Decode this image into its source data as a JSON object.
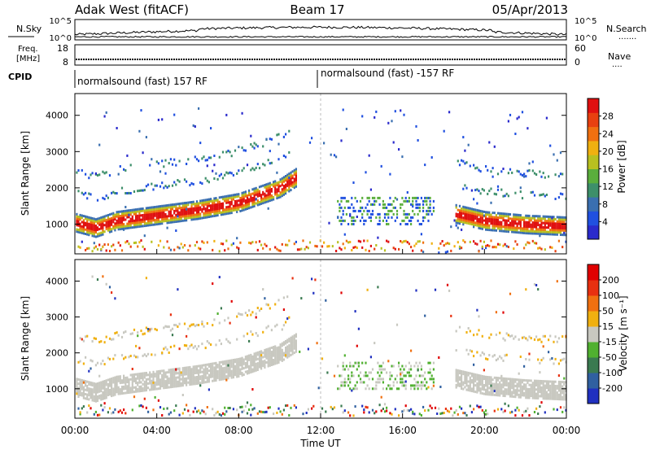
{
  "header": {
    "station": "Adak West (fitACF)",
    "beam": "Beam 17",
    "date": "05/Apr/2013"
  },
  "top_strip": {
    "left_label": "N.Sky",
    "right_label": "N.Search",
    "right_dots": ".......",
    "left_ticks": [
      "10^5",
      "10^0"
    ],
    "right_ticks": [
      "10^5",
      "10^0"
    ],
    "freq_label_1": "Freq.",
    "freq_label_2": "[MHz]",
    "freq_ticks": [
      "18",
      "8"
    ],
    "nave_label": "Nave",
    "nave_dots": "....",
    "nave_ticks": [
      "60",
      "0"
    ],
    "cpid_label": "CPID",
    "cpid_segments": [
      "normalsound (fast) 157 RF",
      "normalsound (fast) -157 RF"
    ]
  },
  "chart_data": [
    {
      "type": "heatmap",
      "title": "",
      "ylabel": "Slant Range [km]",
      "xlabel": "Time UT",
      "x_ticks": [
        "00:00",
        "04:00",
        "08:00",
        "12:00",
        "16:00",
        "20:00",
        "00:00"
      ],
      "xlim": [
        0,
        24
      ],
      "ylim": [
        180,
        4600
      ],
      "y_ticks": [
        1000,
        2000,
        3000,
        4000
      ],
      "colorbar": {
        "label": "Power [dB]",
        "ticks": [
          "28",
          "24",
          "20",
          "16",
          "12",
          "8",
          "4"
        ],
        "colors": [
          "#2a2acc",
          "#2050e0",
          "#3a6fb0",
          "#3d8f6a",
          "#5aae3c",
          "#b8c020",
          "#f0b010",
          "#f07010",
          "#e84010",
          "#e01010"
        ],
        "range": [
          0,
          30
        ]
      },
      "features": [
        {
          "name": "main band",
          "t": [
            0,
            1,
            2,
            4,
            6,
            8,
            10,
            10.8
          ],
          "range_km": [
            1050,
            900,
            1100,
            1250,
            1400,
            1600,
            2000,
            2300
          ]
        },
        {
          "name": "evening band",
          "t": [
            18.5,
            20,
            22,
            24
          ],
          "range_km": [
            1300,
            1100,
            1000,
            950
          ]
        }
      ]
    },
    {
      "type": "heatmap",
      "title": "",
      "ylabel": "Slant Range [km]",
      "xlabel": "Time UT",
      "x_ticks": [
        "00:00",
        "04:00",
        "08:00",
        "12:00",
        "16:00",
        "20:00",
        "00:00"
      ],
      "xlim": [
        0,
        24
      ],
      "ylim": [
        180,
        4600
      ],
      "y_ticks": [
        1000,
        2000,
        3000,
        4000
      ],
      "colorbar": {
        "label": "Velocity [m s⁻¹]",
        "ticks": [
          "200",
          "100",
          "50",
          "15",
          "-15",
          "-50",
          "-100",
          "-200"
        ],
        "colors": [
          "#2030c0",
          "#3060a0",
          "#3a7a50",
          "#50b030",
          "#c8c8c0",
          "#f0b010",
          "#f07010",
          "#e83010",
          "#e00000"
        ],
        "range": [
          -250,
          250
        ]
      }
    }
  ],
  "x_axis_title": "Time UT"
}
